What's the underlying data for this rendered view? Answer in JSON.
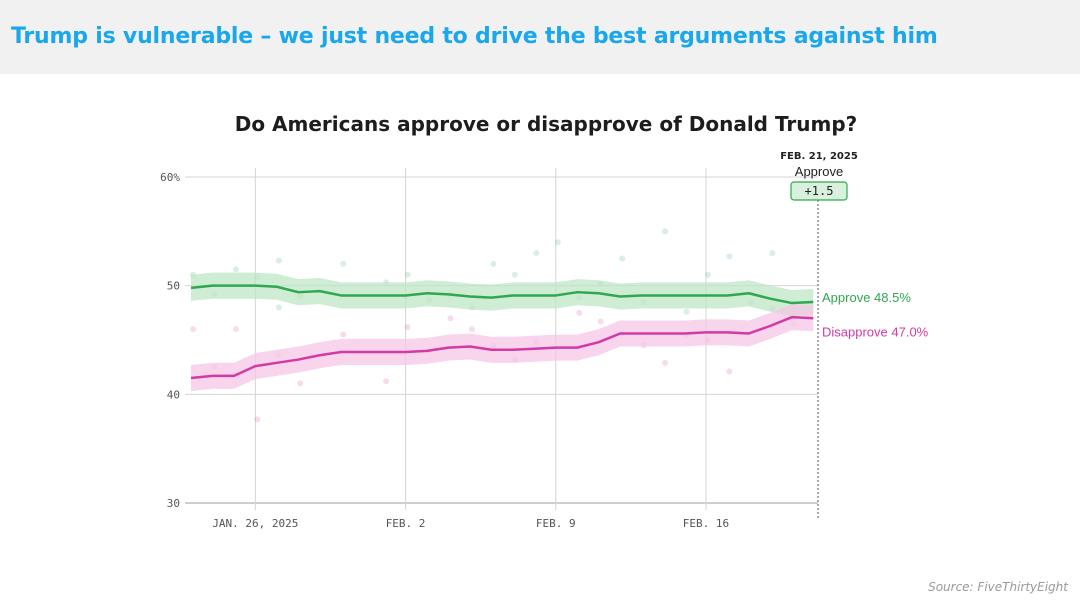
{
  "banner": {
    "title": "Trump is vulnerable – we just need to drive the best arguments against him"
  },
  "source": "Source: FiveThirtyEight",
  "chart_data": {
    "type": "line",
    "title": "Do Americans approve or disapprove of Donald Trump?",
    "ylim": [
      30,
      60
    ],
    "yticks": [
      {
        "value": 60,
        "label": "60%"
      },
      {
        "value": 50,
        "label": "50"
      },
      {
        "value": 40,
        "label": "40"
      },
      {
        "value": 30,
        "label": "30"
      }
    ],
    "xlim": [
      "2025-01-23",
      "2025-02-21"
    ],
    "xticks": [
      {
        "date": "2025-01-26",
        "label": "JAN. 26, 2025"
      },
      {
        "date": "2025-02-02",
        "label": "FEB. 2"
      },
      {
        "date": "2025-02-09",
        "label": "FEB. 9"
      },
      {
        "date": "2025-02-16",
        "label": "FEB. 16"
      }
    ],
    "grid": true,
    "series": [
      {
        "name": "Approve",
        "color": "#2fa84f",
        "band_color": "#bfe5c7",
        "end_label": "Approve 48.5%",
        "x": [
          "2025-01-23",
          "2025-01-24",
          "2025-01-25",
          "2025-01-26",
          "2025-01-27",
          "2025-01-28",
          "2025-01-29",
          "2025-01-30",
          "2025-01-31",
          "2025-02-01",
          "2025-02-02",
          "2025-02-03",
          "2025-02-04",
          "2025-02-05",
          "2025-02-06",
          "2025-02-07",
          "2025-02-08",
          "2025-02-09",
          "2025-02-10",
          "2025-02-11",
          "2025-02-12",
          "2025-02-13",
          "2025-02-14",
          "2025-02-15",
          "2025-02-16",
          "2025-02-17",
          "2025-02-18",
          "2025-02-19",
          "2025-02-20",
          "2025-02-21"
        ],
        "values": [
          49.8,
          50.0,
          50.0,
          50.0,
          49.9,
          49.4,
          49.5,
          49.1,
          49.1,
          49.1,
          49.1,
          49.3,
          49.2,
          49.0,
          48.9,
          49.1,
          49.1,
          49.1,
          49.4,
          49.3,
          49.0,
          49.1,
          49.1,
          49.1,
          49.1,
          49.1,
          49.3,
          48.8,
          48.4,
          48.5
        ],
        "band": 1.2
      },
      {
        "name": "Disapprove",
        "color": "#d33aa6",
        "band_color": "#f6c7e6",
        "end_label": "Disapprove 47.0%",
        "x": [
          "2025-01-23",
          "2025-01-24",
          "2025-01-25",
          "2025-01-26",
          "2025-01-27",
          "2025-01-28",
          "2025-01-29",
          "2025-01-30",
          "2025-01-31",
          "2025-02-01",
          "2025-02-02",
          "2025-02-03",
          "2025-02-04",
          "2025-02-05",
          "2025-02-06",
          "2025-02-07",
          "2025-02-08",
          "2025-02-09",
          "2025-02-10",
          "2025-02-11",
          "2025-02-12",
          "2025-02-13",
          "2025-02-14",
          "2025-02-15",
          "2025-02-16",
          "2025-02-17",
          "2025-02-18",
          "2025-02-19",
          "2025-02-20",
          "2025-02-21"
        ],
        "values": [
          41.5,
          41.7,
          41.7,
          42.6,
          42.9,
          43.2,
          43.6,
          43.9,
          43.9,
          43.9,
          43.9,
          44.0,
          44.3,
          44.4,
          44.1,
          44.1,
          44.2,
          44.3,
          44.3,
          44.8,
          45.6,
          45.6,
          45.6,
          45.6,
          45.7,
          45.7,
          45.6,
          46.3,
          47.1,
          47.0
        ],
        "band": 1.2
      }
    ],
    "poll_points_approve": [
      [
        "2025-01-23",
        51.0
      ],
      [
        "2025-01-24",
        49.2
      ],
      [
        "2025-01-25",
        51.5
      ],
      [
        "2025-01-26",
        50.8
      ],
      [
        "2025-01-27",
        52.3
      ],
      [
        "2025-01-27",
        48.0
      ],
      [
        "2025-01-28",
        49.0
      ],
      [
        "2025-01-30",
        52.0
      ],
      [
        "2025-02-01",
        50.3
      ],
      [
        "2025-02-02",
        51.0
      ],
      [
        "2025-02-03",
        48.7
      ],
      [
        "2025-02-04",
        49.2
      ],
      [
        "2025-02-05",
        48.0
      ],
      [
        "2025-02-06",
        52.0
      ],
      [
        "2025-02-07",
        51.0
      ],
      [
        "2025-02-08",
        53.0
      ],
      [
        "2025-02-09",
        54.0
      ],
      [
        "2025-02-10",
        48.9
      ],
      [
        "2025-02-11",
        50.2
      ],
      [
        "2025-02-12",
        52.5
      ],
      [
        "2025-02-13",
        48.5
      ],
      [
        "2025-02-14",
        55.0
      ],
      [
        "2025-02-15",
        47.6
      ],
      [
        "2025-02-16",
        51.0
      ],
      [
        "2025-02-17",
        52.7
      ],
      [
        "2025-02-18",
        48.5
      ],
      [
        "2025-02-19",
        53.0
      ],
      [
        "2025-02-20",
        47.6
      ]
    ],
    "poll_points_disapprove": [
      [
        "2025-01-23",
        46.0
      ],
      [
        "2025-01-24",
        42.5
      ],
      [
        "2025-01-25",
        46.0
      ],
      [
        "2025-01-26",
        37.7
      ],
      [
        "2025-01-27",
        43.6
      ],
      [
        "2025-01-28",
        41.0
      ],
      [
        "2025-01-30",
        45.5
      ],
      [
        "2025-02-01",
        41.2
      ],
      [
        "2025-02-02",
        46.2
      ],
      [
        "2025-02-03",
        44.0
      ],
      [
        "2025-02-04",
        47.0
      ],
      [
        "2025-02-05",
        46.0
      ],
      [
        "2025-02-06",
        44.5
      ],
      [
        "2025-02-07",
        43.2
      ],
      [
        "2025-02-08",
        44.8
      ],
      [
        "2025-02-10",
        47.5
      ],
      [
        "2025-02-11",
        46.7
      ],
      [
        "2025-02-13",
        44.5
      ],
      [
        "2025-02-14",
        42.9
      ],
      [
        "2025-02-15",
        45.5
      ],
      [
        "2025-02-16",
        45.0
      ],
      [
        "2025-02-17",
        42.1
      ],
      [
        "2025-02-19",
        47.9
      ],
      [
        "2025-02-20",
        46.5
      ]
    ],
    "annotation": {
      "date": "2025-02-21",
      "date_label": "FEB. 21, 2025",
      "label": "Approve",
      "value": "+1.5",
      "color": "#2fa84f",
      "fill": "#d8f0dd"
    }
  }
}
